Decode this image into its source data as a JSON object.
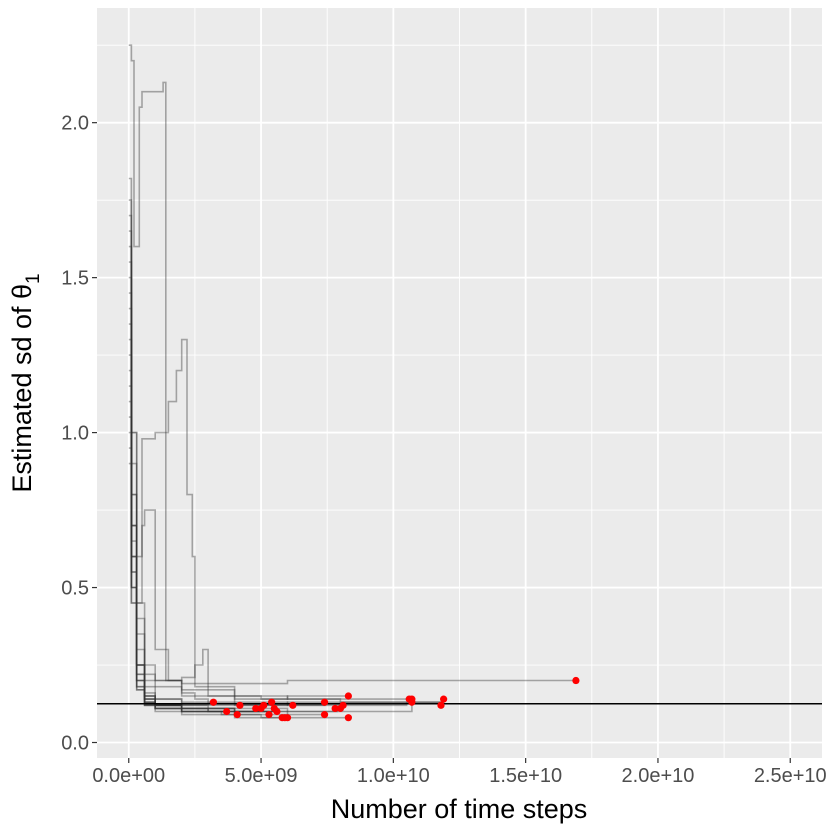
{
  "chart_data": {
    "type": "line",
    "title": "",
    "xlabel": "Number of time steps",
    "ylabel_main": "Estimated sd of θ",
    "ylabel_sub": "1",
    "xlim": [
      -1200000000.0,
      26200000000.0
    ],
    "ylim": [
      -0.05,
      2.37
    ],
    "x_ticks": [
      0,
      5000000000.0,
      10000000000.0,
      15000000000.0,
      20000000000.0,
      25000000000.0
    ],
    "x_tick_labels": [
      "0.0e+00",
      "5.0e+09",
      "1.0e+10",
      "1.5e+10",
      "2.0e+10",
      "2.5e+10"
    ],
    "y_ticks": [
      0.0,
      0.5,
      1.0,
      1.5,
      2.0
    ],
    "y_tick_labels": [
      "0.0",
      "0.5",
      "1.0",
      "1.5",
      "2.0"
    ],
    "grid": true,
    "reference_line_y": 0.125,
    "colors": {
      "panel": "#ebebeb",
      "grid": "#ffffff",
      "trace": "#333333",
      "endpoint": "#ff0000",
      "reference": "#000000"
    },
    "series": [
      {
        "x": [
          0,
          100000000.0,
          300000000.0,
          600000000.0,
          1000000000.0,
          2000000000.0,
          4000000000.0,
          6000000000.0,
          8000000000.0,
          10700000000.0
        ],
        "y": [
          1.82,
          1.0,
          0.45,
          0.25,
          0.18,
          0.15,
          0.14,
          0.14,
          0.14,
          0.14
        ]
      },
      {
        "x": [
          0,
          100000000.0,
          200000000.0,
          400000000.0,
          500000000.0,
          600000000.0,
          1300000000.0,
          1400000000.0,
          2000000000.0,
          4000000000.0,
          6000000000.0,
          8000000000.0,
          10000000000.0,
          11800000000.0
        ],
        "y": [
          2.25,
          2.2,
          1.6,
          2.05,
          2.1,
          2.1,
          2.13,
          0.2,
          0.17,
          0.15,
          0.14,
          0.13,
          0.13,
          0.13
        ]
      },
      {
        "x": [
          0,
          100000000.0,
          300000000.0,
          600000000.0,
          1000000000.0,
          2000000000.0,
          4000000000.0,
          6000000000.0,
          8000000000.0,
          10000000000.0,
          12000000000.0,
          14000000000.0,
          16900000000.0
        ],
        "y": [
          1.7,
          1.0,
          0.4,
          0.22,
          0.2,
          0.19,
          0.19,
          0.2,
          0.2,
          0.2,
          0.2,
          0.2,
          0.2
        ]
      },
      {
        "x": [
          0,
          100000000.0,
          300000000.0,
          500000000.0,
          1000000000.0,
          1500000000.0,
          1800000000.0,
          2000000000.0,
          2200000000.0,
          2400000000.0,
          2500000000.0,
          3000000000.0,
          4000000000.0,
          6000000000.0,
          8000000000.0,
          10500000000.0
        ],
        "y": [
          1.65,
          0.9,
          0.6,
          0.98,
          1.0,
          1.1,
          1.2,
          1.3,
          0.8,
          0.6,
          0.18,
          0.15,
          0.13,
          0.12,
          0.12,
          0.13
        ]
      },
      {
        "x": [
          0,
          100000000.0,
          300000000.0,
          500000000.0,
          600000000.0,
          1000000000.0,
          1500000000.0,
          2000000000.0,
          2500000000.0,
          3000000000.0,
          3200000000.0
        ],
        "y": [
          1.6,
          0.8,
          0.45,
          0.7,
          0.75,
          0.3,
          0.2,
          0.16,
          0.14,
          0.13,
          0.13
        ]
      },
      {
        "x": [
          0,
          100000000.0,
          300000000.0,
          600000000.0,
          1000000000.0,
          2000000000.0,
          2500000000.0,
          2800000000.0,
          3000000000.0,
          4000000000.0,
          5000000000.0,
          6000000000.0,
          7000000000.0,
          8300000000.0
        ],
        "y": [
          1.5,
          0.8,
          0.35,
          0.2,
          0.2,
          0.21,
          0.25,
          0.3,
          0.18,
          0.15,
          0.14,
          0.15,
          0.15,
          0.15
        ]
      },
      {
        "x": [
          0,
          100000000.0,
          300000000.0,
          600000000.0,
          1000000000.0,
          2000000000.0,
          3000000000.0,
          4000000000.0,
          5300000000.0
        ],
        "y": [
          1.4,
          0.7,
          0.3,
          0.18,
          0.14,
          0.12,
          0.11,
          0.1,
          0.1
        ]
      },
      {
        "x": [
          0,
          100000000.0,
          300000000.0,
          600000000.0,
          1000000000.0,
          2000000000.0,
          3000000000.0,
          4000000000.0,
          5000000000.0,
          5800000000.0
        ],
        "y": [
          1.3,
          0.6,
          0.25,
          0.15,
          0.12,
          0.11,
          0.1,
          0.09,
          0.08,
          0.08
        ]
      },
      {
        "x": [
          0,
          100000000.0,
          300000000.0,
          600000000.0,
          1000000000.0,
          2000000000.0,
          4000000000.0,
          6000000000.0,
          8300000000.0
        ],
        "y": [
          1.2,
          0.6,
          0.25,
          0.15,
          0.12,
          0.1,
          0.09,
          0.08,
          0.08
        ]
      },
      {
        "x": [
          0,
          100000000.0,
          300000000.0,
          600000000.0,
          1000000000.0,
          2000000000.0,
          4000000000.0,
          6000000000.0,
          8000000000.0,
          10000000000.0,
          10700000000.0
        ],
        "y": [
          1.1,
          0.55,
          0.22,
          0.14,
          0.12,
          0.11,
          0.11,
          0.1,
          0.1,
          0.1,
          0.14
        ]
      },
      {
        "x": [
          0,
          100000000.0,
          300000000.0,
          600000000.0,
          1000000000.0,
          2000000000.0,
          3500000000.0,
          4200000000.0
        ],
        "y": [
          1.0,
          0.5,
          0.2,
          0.14,
          0.11,
          0.1,
          0.09,
          0.09
        ]
      },
      {
        "x": [
          0,
          100000000.0,
          300000000.0,
          600000000.0,
          1000000000.0,
          2000000000.0,
          4000000000.0,
          6000000000.0,
          7400000000.0
        ],
        "y": [
          1.75,
          0.7,
          0.25,
          0.15,
          0.12,
          0.11,
          0.1,
          0.09,
          0.08
        ]
      },
      {
        "x": [
          0,
          100000000.0,
          300000000.0,
          600000000.0,
          1000000000.0,
          2000000000.0,
          4000000000.0,
          6000000000.0,
          8000000000.0,
          10000000000.0,
          11900000000.0
        ],
        "y": [
          1.55,
          0.7,
          0.25,
          0.16,
          0.14,
          0.13,
          0.12,
          0.13,
          0.13,
          0.13,
          0.14
        ]
      },
      {
        "x": [
          0,
          100000000.0,
          300000000.0,
          600000000.0,
          1000000000.0,
          2000000000.0,
          4000000000.0,
          5500000000.0
        ],
        "y": [
          1.45,
          0.65,
          0.22,
          0.14,
          0.12,
          0.11,
          0.1,
          0.1
        ]
      },
      {
        "x": [
          0,
          100000000.0,
          300000000.0,
          600000000.0,
          1000000000.0,
          2000000000.0,
          3000000000.0,
          3700000000.0
        ],
        "y": [
          1.35,
          0.6,
          0.2,
          0.13,
          0.12,
          0.11,
          0.1,
          0.1
        ]
      },
      {
        "x": [
          0,
          100000000.0,
          300000000.0,
          600000000.0,
          1000000000.0,
          2000000000.0,
          4000000000.0,
          5000000000.0,
          5100000000.0
        ],
        "y": [
          1.25,
          0.55,
          0.2,
          0.13,
          0.11,
          0.1,
          0.1,
          0.11,
          0.11
        ]
      },
      {
        "x": [
          0,
          100000000.0,
          300000000.0,
          600000000.0,
          1000000000.0,
          2000000000.0,
          4000000000.0,
          6000000000.0,
          7400000000.0
        ],
        "y": [
          1.15,
          0.5,
          0.18,
          0.13,
          0.12,
          0.12,
          0.12,
          0.12,
          0.13
        ]
      },
      {
        "x": [
          0,
          100000000.0,
          300000000.0,
          600000000.0,
          1000000000.0,
          2000000000.0,
          4000000000.0,
          5600000000.0
        ],
        "y": [
          1.05,
          0.5,
          0.18,
          0.12,
          0.11,
          0.1,
          0.1,
          0.11
        ]
      },
      {
        "x": [
          0,
          100000000.0,
          300000000.0,
          600000000.0,
          1000000000.0,
          2000000000.0,
          4000000000.0,
          6000000000.0,
          7900000000.0
        ],
        "y": [
          0.95,
          0.45,
          0.17,
          0.12,
          0.11,
          0.1,
          0.1,
          0.1,
          0.1
        ]
      },
      {
        "x": [
          0,
          100000000.0,
          300000000.0,
          600000000.0,
          1000000000.0,
          2000000000.0,
          4000000000.0,
          5900000000.0
        ],
        "y": [
          0.9,
          0.45,
          0.17,
          0.12,
          0.1,
          0.09,
          0.08,
          0.08
        ]
      }
    ],
    "endpoints": [
      {
        "x": 3200000000.0,
        "y": 0.13
      },
      {
        "x": 3700000000.0,
        "y": 0.1
      },
      {
        "x": 4100000000.0,
        "y": 0.09
      },
      {
        "x": 4200000000.0,
        "y": 0.12
      },
      {
        "x": 4800000000.0,
        "y": 0.11
      },
      {
        "x": 5000000000.0,
        "y": 0.11
      },
      {
        "x": 5100000000.0,
        "y": 0.12
      },
      {
        "x": 5300000000.0,
        "y": 0.09
      },
      {
        "x": 5400000000.0,
        "y": 0.13
      },
      {
        "x": 5500000000.0,
        "y": 0.11
      },
      {
        "x": 5600000000.0,
        "y": 0.1
      },
      {
        "x": 5800000000.0,
        "y": 0.08
      },
      {
        "x": 5900000000.0,
        "y": 0.08
      },
      {
        "x": 6000000000.0,
        "y": 0.08
      },
      {
        "x": 6200000000.0,
        "y": 0.12
      },
      {
        "x": 7400000000.0,
        "y": 0.09
      },
      {
        "x": 7400000000.0,
        "y": 0.13
      },
      {
        "x": 7800000000.0,
        "y": 0.11
      },
      {
        "x": 8000000000.0,
        "y": 0.11
      },
      {
        "x": 8100000000.0,
        "y": 0.12
      },
      {
        "x": 8300000000.0,
        "y": 0.08
      },
      {
        "x": 8300000000.0,
        "y": 0.15
      },
      {
        "x": 10600000000.0,
        "y": 0.14
      },
      {
        "x": 10700000000.0,
        "y": 0.13
      },
      {
        "x": 10700000000.0,
        "y": 0.14
      },
      {
        "x": 11800000000.0,
        "y": 0.12
      },
      {
        "x": 11900000000.0,
        "y": 0.14
      },
      {
        "x": 16900000000.0,
        "y": 0.2
      }
    ]
  }
}
